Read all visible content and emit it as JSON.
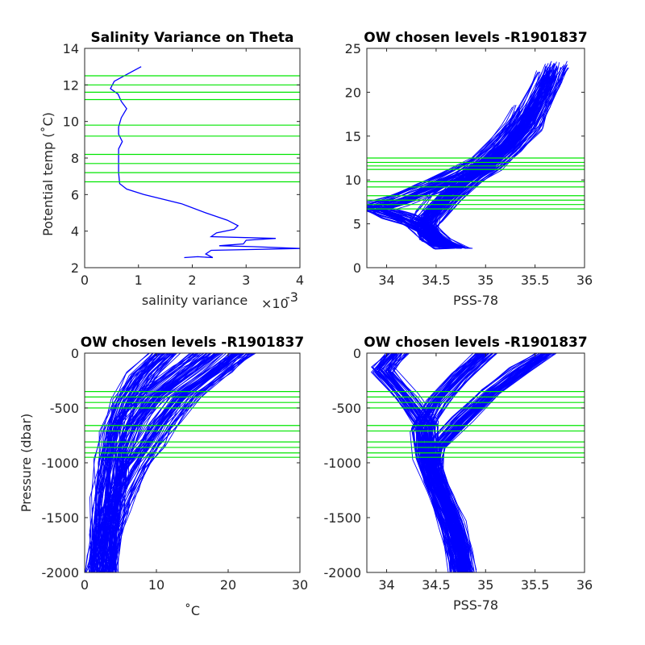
{
  "colors": {
    "profile": "#0000ff",
    "levels": "#00e600",
    "axes": "#262626",
    "background": "#ffffff"
  },
  "chart_data": [
    {
      "type": "line",
      "title": "Salinity Variance on Theta",
      "xlabel": "salinity variance",
      "x_exponent_label": "×10",
      "x_exponent": "-3",
      "ylabel": "Potential temp (˚C)",
      "xlim": [
        0,
        4
      ],
      "ylim": [
        2,
        14
      ],
      "xticks": [
        "0",
        "1",
        "2",
        "3",
        "4"
      ],
      "yticks": [
        "2",
        "4",
        "6",
        "8",
        "10",
        "12",
        "14"
      ],
      "xtick_values": [
        0,
        1,
        2,
        3,
        4
      ],
      "ytick_values": [
        2,
        4,
        6,
        8,
        10,
        12,
        14
      ],
      "x_units_scale": 0.001,
      "series": [
        {
          "x": [
            1.05,
            0.8,
            0.55,
            0.48,
            0.62,
            0.68,
            0.78,
            0.68,
            0.63,
            0.63,
            0.7,
            0.63,
            0.63,
            0.63,
            0.63,
            0.65,
            0.78,
            1.1,
            1.8,
            2.25,
            2.65,
            2.85,
            2.78,
            2.45,
            2.35,
            3.55,
            3.0,
            2.95,
            2.5,
            3.12,
            4.0,
            2.35,
            2.25,
            2.38,
            2.1,
            1.85
          ],
          "y": [
            13.0,
            12.6,
            12.2,
            11.8,
            11.5,
            11.1,
            10.7,
            10.2,
            9.7,
            9.3,
            8.9,
            8.5,
            8.1,
            7.7,
            7.2,
            6.6,
            6.3,
            6.0,
            5.5,
            5.0,
            4.6,
            4.3,
            4.1,
            3.9,
            3.7,
            3.6,
            3.5,
            3.3,
            3.2,
            3.15,
            3.05,
            2.95,
            2.75,
            2.55,
            2.6,
            2.55
          ]
        }
      ],
      "hlines": [
        12.5,
        12.0,
        11.6,
        11.2,
        9.8,
        9.2,
        8.2,
        7.7,
        7.2,
        6.7
      ]
    },
    {
      "type": "line",
      "title": "OW chosen levels -R1901837",
      "xlabel": "PSS-78",
      "ylabel": "",
      "xlim": [
        33.8,
        36
      ],
      "ylim": [
        0,
        25
      ],
      "xticks": [
        "34",
        "34.5",
        "35",
        "35.5",
        "36"
      ],
      "yticks": [
        "0",
        "5",
        "10",
        "15",
        "20",
        "25"
      ],
      "xtick_values": [
        34,
        34.5,
        35,
        35.5,
        36
      ],
      "ytick_values": [
        0,
        5,
        10,
        15,
        20,
        25
      ],
      "envelope_note": "many float profiles (T-S)",
      "series": [
        {
          "x": [
            34.75,
            34.55,
            34.45,
            34.4,
            34.45,
            34.65,
            34.85,
            35.05,
            35.25,
            35.45,
            35.55,
            35.65,
            35.72
          ],
          "y": [
            2.2,
            2.7,
            3.5,
            4.5,
            5.5,
            8.0,
            10.0,
            11.5,
            13.5,
            16.0,
            18.5,
            21.0,
            23.0
          ]
        },
        {
          "x": [
            34.6,
            34.48,
            34.4,
            34.2,
            34.0,
            33.85,
            34.1,
            34.4,
            34.7,
            34.95,
            35.15,
            35.3,
            35.4
          ],
          "y": [
            2.6,
            3.2,
            4.2,
            5.5,
            6.2,
            6.8,
            7.6,
            9.0,
            10.5,
            12.0,
            14.0,
            16.0,
            18.0
          ]
        },
        {
          "x": [
            34.7,
            34.52,
            34.42,
            34.35,
            34.4,
            34.55,
            34.8,
            35.0,
            35.2,
            35.4,
            35.55,
            35.62
          ],
          "y": [
            2.4,
            3.0,
            4.0,
            5.0,
            6.0,
            8.0,
            10.2,
            12.0,
            14.0,
            17.0,
            20.0,
            22.0
          ]
        }
      ],
      "hlines": [
        12.5,
        12.0,
        11.6,
        11.2,
        9.8,
        9.2,
        8.2,
        7.7,
        7.2,
        6.7
      ]
    },
    {
      "type": "line",
      "title": "OW chosen levels -R1901837",
      "xlabel": "˚C",
      "ylabel": "Pressure (dbar)",
      "xlim": [
        0,
        30
      ],
      "ylim": [
        -2000,
        0
      ],
      "xticks": [
        "0",
        "10",
        "20",
        "30"
      ],
      "yticks": [
        "-2000",
        "-1500",
        "-1000",
        "-500",
        "0"
      ],
      "xtick_values": [
        0,
        10,
        20,
        30
      ],
      "ytick_values": [
        -2000,
        -1500,
        -1000,
        -500,
        0
      ],
      "envelope_note": "many float profiles (temperature vs pressure)",
      "series": [
        {
          "x": [
            22,
            19,
            14,
            11,
            9,
            7,
            5.5,
            4.2,
            3.3,
            2.7,
            2.4
          ],
          "y": [
            0,
            -150,
            -400,
            -650,
            -850,
            -1050,
            -1250,
            -1450,
            -1650,
            -1850,
            -2000
          ]
        },
        {
          "x": [
            17,
            14,
            9,
            6,
            4.5,
            3.8,
            3.2,
            2.8,
            2.5
          ],
          "y": [
            0,
            -150,
            -400,
            -650,
            -900,
            -1150,
            -1450,
            -1750,
            -2000
          ]
        },
        {
          "x": [
            11,
            8,
            5.5,
            4.2,
            3.5,
            3.0,
            2.6,
            2.3
          ],
          "y": [
            0,
            -200,
            -450,
            -700,
            -1000,
            -1300,
            -1650,
            -2000
          ]
        }
      ],
      "hlines": [
        -350,
        -400,
        -450,
        -500,
        -660,
        -710,
        -810,
        -860,
        -910,
        -950
      ]
    },
    {
      "type": "line",
      "title": "OW chosen levels -R1901837",
      "xlabel": "PSS-78",
      "ylabel": "",
      "xlim": [
        33.8,
        36
      ],
      "ylim": [
        -2000,
        0
      ],
      "xticks": [
        "34",
        "34.5",
        "35",
        "35.5",
        "36"
      ],
      "yticks": [
        "-2000",
        "-1500",
        "-1000",
        "-500",
        "0"
      ],
      "xtick_values": [
        34,
        34.5,
        35,
        35.5,
        36
      ],
      "ytick_values": [
        -2000,
        -1500,
        -1000,
        -500,
        0
      ],
      "envelope_note": "many float profiles (salinity vs pressure)",
      "series": [
        {
          "x": [
            35.6,
            35.35,
            35.05,
            34.75,
            34.5,
            34.45,
            34.55,
            34.68,
            34.75,
            34.78
          ],
          "y": [
            0,
            -150,
            -350,
            -600,
            -850,
            -1050,
            -1300,
            -1550,
            -1800,
            -2000
          ]
        },
        {
          "x": [
            34.1,
            33.95,
            34.2,
            34.4,
            34.42,
            34.5,
            34.62,
            34.72,
            34.76
          ],
          "y": [
            0,
            -150,
            -400,
            -650,
            -900,
            -1150,
            -1450,
            -1750,
            -2000
          ]
        },
        {
          "x": [
            35.0,
            34.75,
            34.5,
            34.35,
            34.38,
            34.5,
            34.65,
            34.74
          ],
          "y": [
            0,
            -200,
            -450,
            -700,
            -950,
            -1250,
            -1600,
            -2000
          ]
        }
      ],
      "hlines": [
        -350,
        -400,
        -450,
        -500,
        -660,
        -710,
        -810,
        -860,
        -910,
        -950
      ]
    }
  ]
}
